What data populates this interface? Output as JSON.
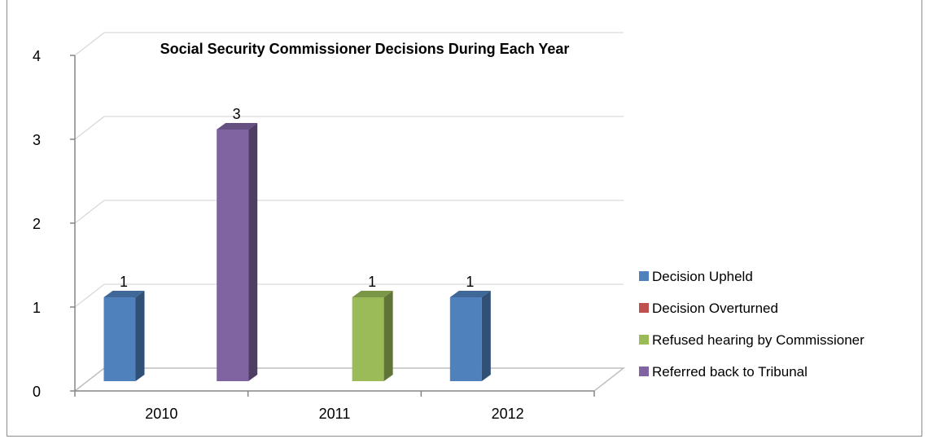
{
  "chart_data": {
    "type": "bar",
    "title": "Social Security Commissioner Decisions During Each Year",
    "categories": [
      "2010",
      "2011",
      "2012"
    ],
    "series": [
      {
        "name": "Decision Upheld",
        "values": [
          1,
          0,
          1
        ],
        "color": "#4f81bd"
      },
      {
        "name": "Decision Overturned",
        "values": [
          0,
          0,
          0
        ],
        "color": "#c0504d"
      },
      {
        "name": "Refused hearing by Commissioner",
        "values": [
          0,
          1,
          0
        ],
        "color": "#9bbb59"
      },
      {
        "name": "Referred back to Tribunal",
        "values": [
          3,
          0,
          0
        ],
        "color": "#8064a2"
      }
    ],
    "data_labels": [
      {
        "category": "2010",
        "series": "Decision Upheld",
        "text": "1"
      },
      {
        "category": "2010",
        "series": "Referred back to Tribunal",
        "text": "3"
      },
      {
        "category": "2011",
        "series": "Refused hearing by Commissioner",
        "text": "1"
      },
      {
        "category": "2012",
        "series": "Decision Upheld",
        "text": "1"
      }
    ],
    "y_ticks": [
      "0",
      "1",
      "2",
      "3",
      "4"
    ],
    "ylim": [
      0,
      4
    ],
    "grid": true,
    "legend_position": "right",
    "style": "3d-clustered-column"
  }
}
